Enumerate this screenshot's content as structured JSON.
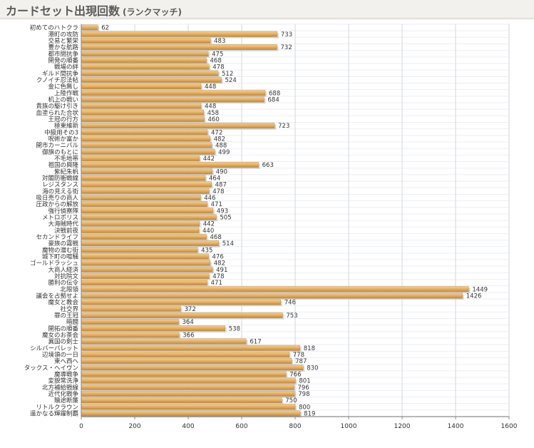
{
  "page": {
    "title": "カードセット出現回数",
    "subtitle": "(ランクマッチ)"
  },
  "colors": {
    "bar_fill": "#e7b266",
    "bar_top": "#f4cf94",
    "bar_bottom": "#b98a49",
    "shadow": "#c9c9c9",
    "grid": "#d3d6dc",
    "axis": "#8c8c8c"
  },
  "chart_data": {
    "type": "bar",
    "orientation": "horizontal",
    "title": "",
    "xlabel": "",
    "ylabel": "",
    "xlim": [
      0,
      1600
    ],
    "xticks": [
      0,
      200,
      400,
      600,
      800,
      1000,
      1200,
      1400,
      1600
    ],
    "grid": true,
    "legend": "none",
    "categories": [
      "初めてのハトクラ",
      "港町の攻防",
      "交易と繁栄",
      "豊かな航路",
      "都市間抗争",
      "開発の順番",
      "戦場の絆",
      "ギルド間抗争",
      "クノイチ忍法帖",
      "金に色無し",
      "上陸作戦",
      "机上の戦い",
      "貴族の駆け引き",
      "血塗られた合状",
      "王冠の行方",
      "極東維新",
      "中級用その3",
      "呪術か富か",
      "開市カーニバル",
      "御旗のもとに",
      "不毛地帯",
      "祖国の興隆",
      "紫紀朱帆",
      "対閣防衛戦線",
      "レジスタンス",
      "海の見える街",
      "吸日売りの商人",
      "圧政からの解放",
      "強行偵察隊",
      "メトロポリス",
      "大海賊時代",
      "決戦前夜",
      "セカンドライフ",
      "豪族の霧戦",
      "魔物の潜む街",
      "城下町の喧騒",
      "ゴールドラッシュ",
      "大商人経済",
      "対抗院文",
      "勝利の伝令",
      "北限領",
      "議会を占拠せよ",
      "魔女と教会",
      "社交界",
      "罪の王冠",
      "暗闘",
      "開拓の順番",
      "魔女のお茶会",
      "異国の剣士",
      "シルバーバレット",
      "辺境領の一日",
      "東へ西へ",
      "タックス・ヘイヴン",
      "魔導戦争",
      "変貌常洗浄",
      "北方補給戦線",
      "近代化戦争",
      "贖途断簾",
      "リトルクラウン",
      "遥かなる輝躍制覇"
    ],
    "values": [
      62,
      733,
      483,
      732,
      475,
      468,
      478,
      512,
      524,
      448,
      688,
      684,
      448,
      458,
      460,
      723,
      472,
      482,
      488,
      499,
      442,
      663,
      490,
      464,
      487,
      478,
      446,
      471,
      493,
      505,
      442,
      440,
      468,
      514,
      435,
      476,
      482,
      491,
      478,
      471,
      1449,
      1426,
      746,
      372,
      753,
      364,
      538,
      366,
      617,
      818,
      778,
      787,
      830,
      766,
      801,
      796,
      798,
      750,
      800,
      819
    ]
  }
}
